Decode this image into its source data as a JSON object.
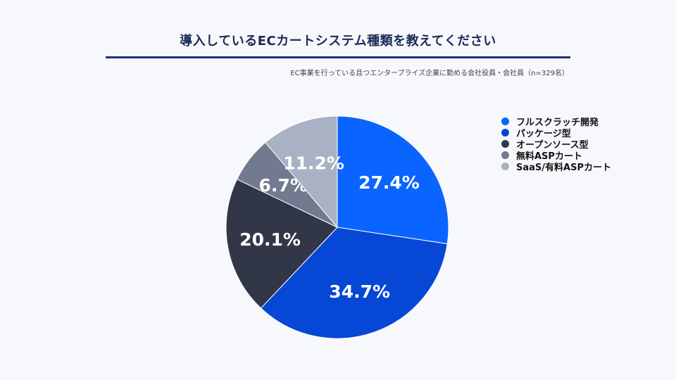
{
  "header": {
    "title": "導入しているECカートシステム種類を教えてください",
    "subtitle": "EC事業を行っている且つエンタープライズ企業に勤める会社役員・会社員（n=329名）"
  },
  "chart_data": {
    "type": "pie",
    "title": "導入しているECカートシステム種類を教えてください",
    "subtitle": "EC事業を行っている且つエンタープライズ企業に勤める会社役員・会社員（n=329名）",
    "legend_position": "right",
    "start_angle": "12 o'clock",
    "direction": "clockwise",
    "slices": [
      {
        "label": "フルスクラッチ開発",
        "value": 27.4,
        "value_label": "27.4%",
        "color": "#0a64ff"
      },
      {
        "label": "パッケージ型",
        "value": 34.7,
        "value_label": "34.7%",
        "color": "#0647d6"
      },
      {
        "label": "オープンソース型",
        "value": 20.1,
        "value_label": "20.1%",
        "color": "#323748"
      },
      {
        "label": "無料ASPカート",
        "value": 6.7,
        "value_label": "6.7%",
        "color": "#727a8f"
      },
      {
        "label": "SaaS/有料ASPカート",
        "value": 11.2,
        "value_label": "11.2%",
        "color": "#a9b1c4"
      }
    ]
  }
}
